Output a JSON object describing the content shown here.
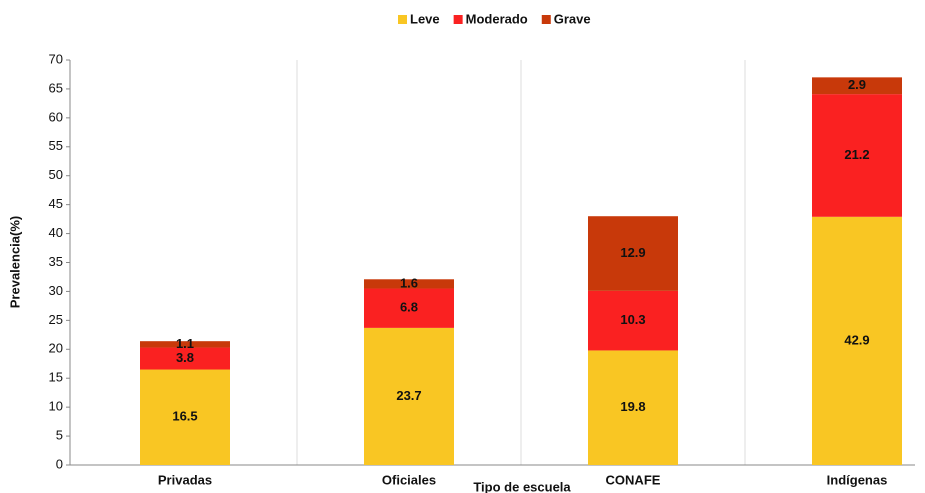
{
  "chart_data": {
    "type": "stacked_bar",
    "x_label": "Tipo de escuela",
    "y_label": "Prevalencia(%)",
    "categories": [
      "Privadas",
      "Oficiales",
      "CONAFE",
      "Indígenas"
    ],
    "series": [
      {
        "name": "Leve",
        "color": "#f9c623",
        "values": [
          16.5,
          23.7,
          19.8,
          42.9
        ]
      },
      {
        "name": "Moderado",
        "color": "#fa2121",
        "values": [
          3.8,
          6.8,
          10.3,
          21.2
        ]
      },
      {
        "name": "Grave",
        "color": "#c8390a",
        "values": [
          1.1,
          1.6,
          12.9,
          2.9
        ]
      }
    ],
    "ylim": [
      0,
      70
    ],
    "yticks": [
      0,
      5,
      10,
      15,
      20,
      25,
      30,
      35,
      40,
      45,
      50,
      55,
      60,
      65,
      70
    ],
    "legend": "top"
  }
}
